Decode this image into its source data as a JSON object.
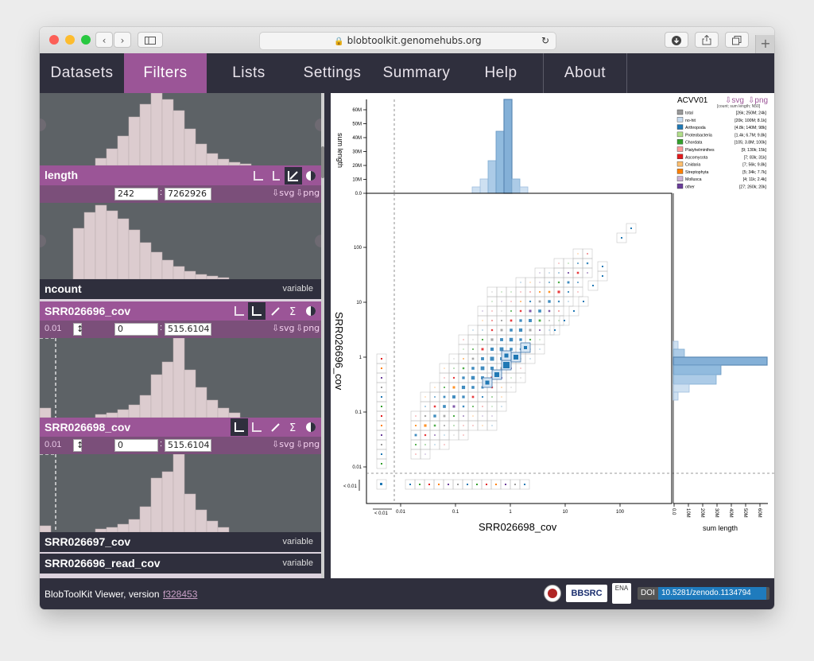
{
  "browser": {
    "url": "blobtoolkit.genomehubs.org"
  },
  "nav": {
    "items": [
      {
        "label": "Datasets"
      },
      {
        "label": "Filters"
      },
      {
        "label": "Lists"
      },
      {
        "label": "Settings"
      },
      {
        "label": "Summary"
      },
      {
        "label": "Help"
      },
      {
        "label": "About"
      }
    ],
    "active": "Filters"
  },
  "sidebar": {
    "length": {
      "title": "length",
      "min": "242",
      "max": "7262926",
      "svg_label": "⇩svg",
      "png_label": "⇩png"
    },
    "ncount": {
      "title": "ncount",
      "status": "variable"
    },
    "srr026696_cov": {
      "title": "SRR026696_cov",
      "threshold": "0.01",
      "min": "0",
      "max": "515.6104",
      "svg_label": "⇩svg",
      "png_label": "⇩png"
    },
    "srr026698_cov": {
      "title": "SRR026698_cov",
      "threshold": "0.01",
      "min": "0",
      "max": "515.6104",
      "svg_label": "⇩svg",
      "png_label": "⇩png"
    },
    "srr026697_cov": {
      "title": "SRR026697_cov",
      "status": "variable"
    },
    "srr026696_read_cov": {
      "title": "SRR026696_read_cov",
      "status": "variable"
    }
  },
  "plot": {
    "dataset": "ACVV01",
    "svg_label": "⇩svg",
    "png_label": "⇩png",
    "legend_header": "[count; sum length; N50]",
    "legend": [
      {
        "name": "total",
        "stats": "[26k; 250M; 24k]",
        "color": "#999999"
      },
      {
        "name": "no-hit",
        "stats": "[20k; 100M; 8.1k]",
        "color": "#c6dbef"
      },
      {
        "name": "Arthropoda",
        "stats": "[4.8k; 140M; 98k]",
        "color": "#1f78b4"
      },
      {
        "name": "Proteobacteria",
        "stats": "[1.4k; 6.7M; 9.8k]",
        "color": "#b2df8a"
      },
      {
        "name": "Chordata",
        "stats": "[105; 3.8M; 100k]",
        "color": "#33a02c"
      },
      {
        "name": "Platyhelminthes",
        "stats": "[9; 130k; 15k]",
        "color": "#fb9a99"
      },
      {
        "name": "Ascomycota",
        "stats": "[7; 83k; 31k]",
        "color": "#e31a1c"
      },
      {
        "name": "Cnidaria",
        "stats": "[7; 56k; 9.8k]",
        "color": "#fdbf6f"
      },
      {
        "name": "Streptophyta",
        "stats": "[5; 34k; 7.7k]",
        "color": "#ff7f00"
      },
      {
        "name": "Mollusca",
        "stats": "[4; 11k; 2.4k]",
        "color": "#cab2d6"
      },
      {
        "name": "other",
        "stats": "[27; 260k; 20k]",
        "color": "#6a3d9a"
      }
    ],
    "top_axis_label": "sum length",
    "top_ticks": [
      "0.0",
      "10M",
      "20M",
      "30M",
      "40M",
      "50M",
      "60M"
    ],
    "right_axis_label": "sum length",
    "right_ticks": [
      "0.0",
      "10M",
      "20M",
      "30M",
      "40M",
      "50M",
      "60M"
    ],
    "xlabel": "SRR026698_cov",
    "ylabel": "SRR026696_cov",
    "x_ticks": [
      "0.01",
      "0.1",
      "1",
      "10",
      "100"
    ],
    "y_ticks": [
      "0.01",
      "0.1",
      "1",
      "10",
      "100"
    ],
    "below_threshold_label": "< 0.01"
  },
  "footer": {
    "viewer_label": "BlobToolKit Viewer, version",
    "version": "f328453",
    "logo_bbsrc": "BBSRC",
    "logo_ena": "ENA",
    "doi_label": "DOI",
    "doi_value": "10.5281/zenodo.1134794"
  }
}
